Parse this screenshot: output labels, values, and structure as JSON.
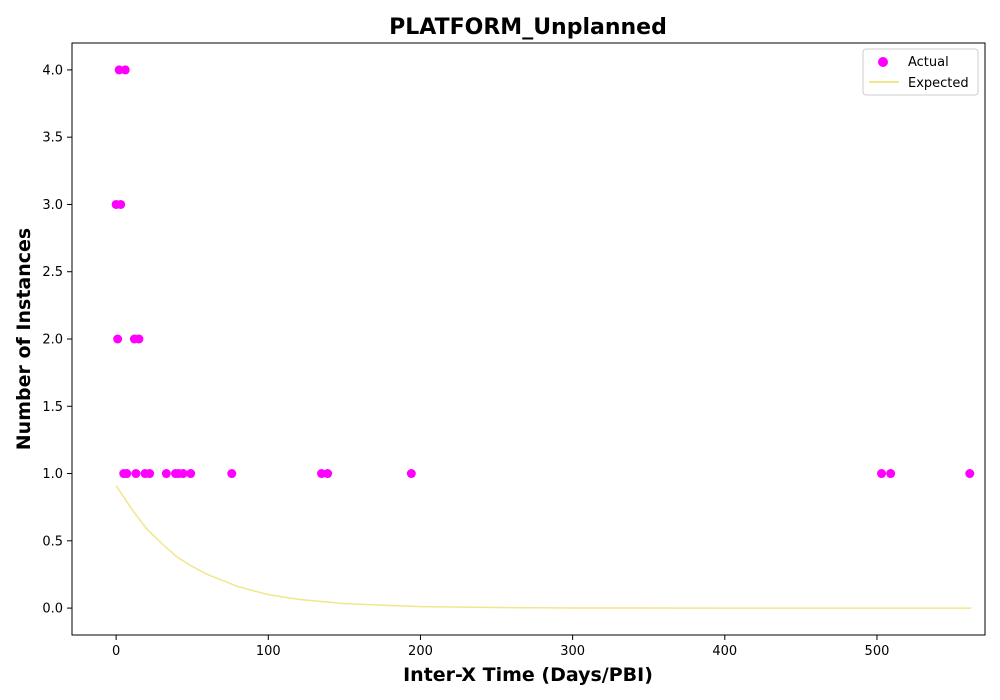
{
  "chart_data": {
    "type": "scatter",
    "title": "PLATFORM_Unplanned",
    "xlabel": "Inter-X Time (Days/PBI)",
    "ylabel": "Number of Instances",
    "xlim": [
      -29,
      571
    ],
    "ylim": [
      -0.2,
      4.2
    ],
    "xticks": [
      0,
      100,
      200,
      300,
      400,
      500
    ],
    "yticks": [
      0.0,
      0.5,
      1.0,
      1.5,
      2.0,
      2.5,
      3.0,
      3.5,
      4.0
    ],
    "ytick_labels": [
      "0.0",
      "0.5",
      "1.0",
      "1.5",
      "2.0",
      "2.5",
      "3.0",
      "3.5",
      "4.0"
    ],
    "grid": false,
    "legend_position": "top-right",
    "series": [
      {
        "name": "Actual",
        "kind": "scatter",
        "color": "#ff00ff",
        "points": [
          [
            0,
            3
          ],
          [
            3,
            3
          ],
          [
            1,
            2
          ],
          [
            2,
            4
          ],
          [
            6,
            4
          ],
          [
            5,
            1
          ],
          [
            7,
            1
          ],
          [
            12,
            2
          ],
          [
            15,
            2
          ],
          [
            13,
            1
          ],
          [
            19,
            1
          ],
          [
            22,
            1
          ],
          [
            33,
            1
          ],
          [
            39,
            1
          ],
          [
            41,
            1
          ],
          [
            44,
            1
          ],
          [
            49,
            1
          ],
          [
            76,
            1
          ],
          [
            135,
            1
          ],
          [
            139,
            1
          ],
          [
            194,
            1
          ],
          [
            503,
            1
          ],
          [
            509,
            1
          ],
          [
            561,
            1
          ]
        ]
      },
      {
        "name": "Expected",
        "kind": "line",
        "color": "#f0e68c",
        "x": [
          0,
          10,
          20,
          30,
          40,
          50,
          60,
          80,
          100,
          120,
          150,
          200,
          250,
          300,
          400,
          500,
          562
        ],
        "y": [
          0.91,
          0.74,
          0.59,
          0.48,
          0.38,
          0.31,
          0.25,
          0.16,
          0.1,
          0.065,
          0.033,
          0.011,
          0.004,
          0.001,
          0.0,
          0.0,
          0.0
        ]
      }
    ]
  }
}
